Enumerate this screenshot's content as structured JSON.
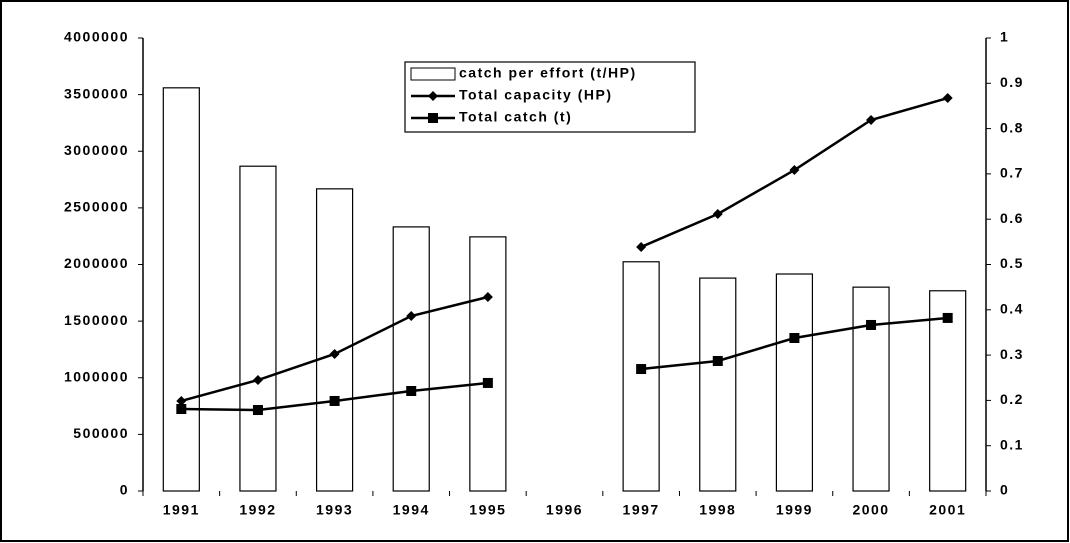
{
  "chart_data": {
    "type": "bar",
    "categories": [
      "1991",
      "1992",
      "1993",
      "1994",
      "1995",
      "1996",
      "1997",
      "1998",
      "1999",
      "2000",
      "2001"
    ],
    "series": [
      {
        "name": "catch per effort (t/HP)",
        "type": "bar",
        "axis": "y2",
        "color": "#ffffff",
        "values": [
          0.89,
          0.717,
          0.667,
          0.583,
          0.561,
          null,
          0.506,
          0.47,
          0.479,
          0.45,
          0.442
        ]
      },
      {
        "name": "Total capacity (HP)",
        "type": "line",
        "marker": "diamond",
        "color": "#000000",
        "values": [
          795000,
          980000,
          1210000,
          1545000,
          1713000,
          null,
          2155000,
          2446000,
          2834000,
          3276000,
          3470000
        ]
      },
      {
        "name": "Total catch (t)",
        "type": "line",
        "marker": "square",
        "color": "#000000",
        "values": [
          724000,
          715000,
          795000,
          883000,
          954000,
          null,
          1077000,
          1148000,
          1351000,
          1466000,
          1528000
        ]
      }
    ],
    "ylim": [
      0,
      4000000
    ],
    "yticks": [
      0,
      500000,
      1000000,
      1500000,
      2000000,
      2500000,
      3000000,
      3500000,
      4000000
    ],
    "y2lim": [
      0,
      1
    ],
    "y2ticks": [
      0,
      0.1,
      0.2,
      0.3,
      0.4,
      0.5,
      0.6,
      0.7,
      0.8,
      0.9,
      1
    ],
    "grid": false,
    "legend": "top"
  }
}
